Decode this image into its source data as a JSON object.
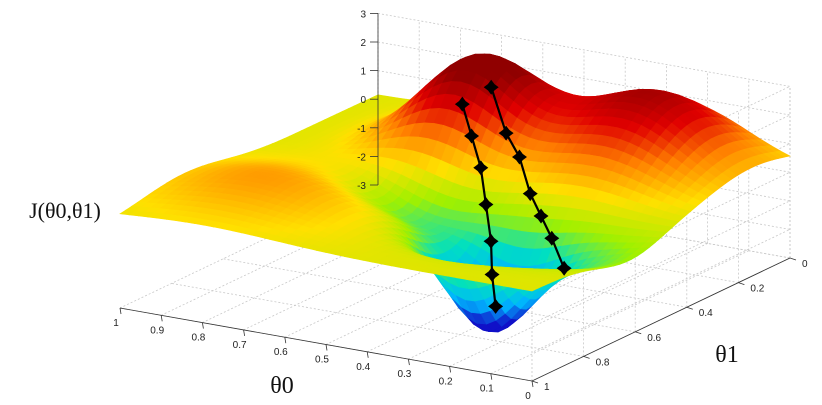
{
  "chart_data": {
    "type": "surface3d",
    "title": "",
    "zlabel": "J(θ0,θ1)",
    "xlabel": "θ0",
    "ylabel": "θ1",
    "zlim": [
      -3,
      3
    ],
    "xlim": [
      0,
      1
    ],
    "ylim": [
      0,
      1
    ],
    "z_ticks": [
      "3",
      "2",
      "1",
      "0",
      "-1",
      "-2",
      "-3"
    ],
    "theta0_ticks": [
      "1",
      "0.9",
      "0.8",
      "0.7",
      "0.6",
      "0.5",
      "0.4",
      "0.3",
      "0.2",
      "0.1",
      "0"
    ],
    "theta1_ticks": [
      "0",
      "0.2",
      "0.4",
      "0.6",
      "0.8",
      "1"
    ],
    "grid": true,
    "colormap": [
      "#1010c8",
      "#00b4ff",
      "#00e0c0",
      "#a0f000",
      "#ffe000",
      "#ff8000",
      "#e00000",
      "#900000"
    ],
    "series": [
      {
        "points": [
          [
            0.62,
            0.28,
            2.0
          ],
          [
            0.56,
            0.34,
            1.3
          ],
          [
            0.5,
            0.4,
            0.6
          ],
          [
            0.45,
            0.46,
            -0.3
          ],
          [
            0.4,
            0.52,
            -1.2
          ],
          [
            0.36,
            0.58,
            -2.0
          ],
          [
            0.32,
            0.63,
            -2.8
          ]
        ]
      },
      {
        "points": [
          [
            0.6,
            0.2,
            2.3
          ],
          [
            0.52,
            0.27,
            1.2
          ],
          [
            0.45,
            0.33,
            0.8
          ],
          [
            0.38,
            0.4,
            0.0
          ],
          [
            0.31,
            0.47,
            -0.3
          ],
          [
            0.24,
            0.54,
            -0.6
          ],
          [
            0.16,
            0.62,
            -1.1
          ]
        ]
      }
    ]
  }
}
